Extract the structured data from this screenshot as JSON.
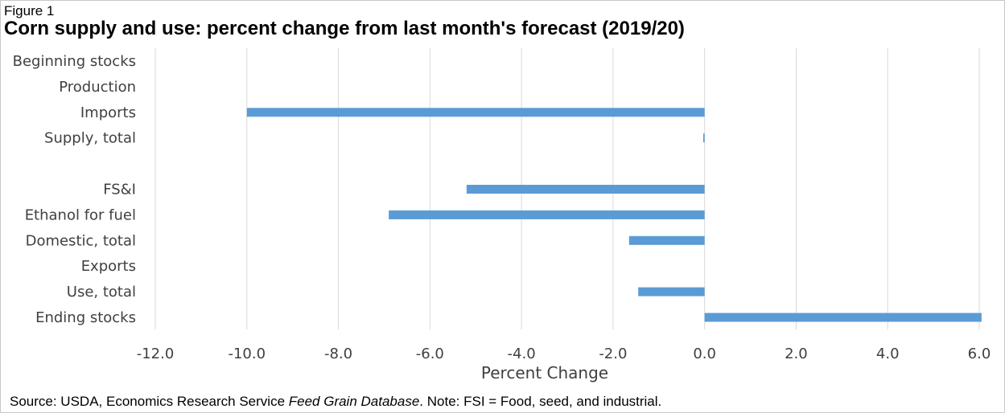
{
  "figure_label": "Figure 1",
  "chart_data": {
    "type": "bar",
    "orientation": "horizontal",
    "title": "Corn supply and use: percent change from last month's forecast (2019/20)",
    "xlabel": "Percent Change",
    "ylabel": "",
    "xlim": [
      -12.0,
      6.0
    ],
    "x_ticks": [
      "-12.0",
      "-10.0",
      "-8.0",
      "-6.0",
      "-4.0",
      "-2.0",
      "0.0",
      "2.0",
      "4.0",
      "6.0"
    ],
    "x_tick_values": [
      -12,
      -10,
      -8,
      -6,
      -4,
      -2,
      0,
      2,
      4,
      6
    ],
    "categories": [
      "Beginning stocks",
      "Production",
      "Imports",
      "Supply, total",
      "",
      "FS&I",
      "Ethanol for fuel",
      "Domestic, total",
      "Exports",
      "Use, total",
      "Ending stocks"
    ],
    "values": [
      0,
      0,
      -10.0,
      -0.03,
      null,
      -5.2,
      -6.9,
      -1.65,
      0,
      -1.45,
      6.05
    ],
    "bar_color": "#5B9BD5",
    "grid": "vertical",
    "legend": "none"
  },
  "source": {
    "prefix": "Source: USDA, Economics Research Service ",
    "italic": "Feed Grain Database",
    "suffix": ". Note: FSI = Food, seed, and industrial."
  }
}
